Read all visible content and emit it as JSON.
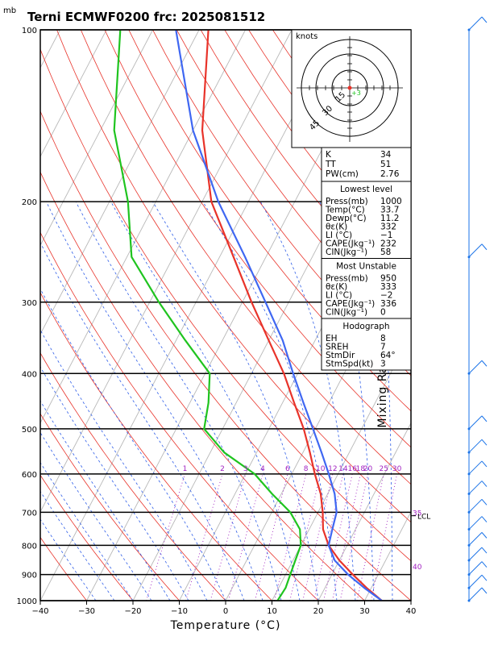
{
  "chart_data": {
    "type": "skew-t",
    "title": "Terni ECMWF0200  frc: 2025081512",
    "pressure_unit_label": "mb",
    "xlabel": "Temperature (°C)",
    "ylabel_right": "Mixing Ratio (g/kg)",
    "xlim": [
      -40,
      40
    ],
    "ylim_mb": [
      1000,
      100
    ],
    "x_ticks": [
      "−40",
      "−30",
      "−20",
      "−10",
      "0",
      "10",
      "20",
      "30",
      "40"
    ],
    "pressure_levels": [
      {
        "p": 100,
        "label": "100"
      },
      {
        "p": 200,
        "label": "200"
      },
      {
        "p": 300,
        "label": "300"
      },
      {
        "p": 400,
        "label": "400"
      },
      {
        "p": 500,
        "label": "500"
      },
      {
        "p": 600,
        "label": "600"
      },
      {
        "p": 700,
        "label": "700"
      },
      {
        "p": 800,
        "label": "800"
      },
      {
        "p": 900,
        "label": "900"
      },
      {
        "p": 1000,
        "label": "1000"
      }
    ],
    "mixing_ratio_labels": [
      "1",
      "2",
      "3",
      "4",
      "6",
      "8",
      "10",
      "12",
      "14",
      "16",
      "18",
      "20",
      "25",
      "30"
    ],
    "isotherm_labels": [
      "35",
      "40"
    ],
    "lcl_label": "LCL",
    "series": [
      {
        "role": "temperature",
        "color": "#e8332a",
        "points": [
          [
            1000,
            33.7
          ],
          [
            950,
            29
          ],
          [
            900,
            24.5
          ],
          [
            850,
            20
          ],
          [
            800,
            16
          ],
          [
            750,
            13
          ],
          [
            700,
            11
          ],
          [
            650,
            8.5
          ],
          [
            600,
            5
          ],
          [
            550,
            1.5
          ],
          [
            500,
            -2.5
          ],
          [
            450,
            -7.5
          ],
          [
            400,
            -13
          ],
          [
            350,
            -20
          ],
          [
            300,
            -28
          ],
          [
            250,
            -37
          ],
          [
            200,
            -48
          ],
          [
            150,
            -58
          ],
          [
            100,
            -68
          ]
        ]
      },
      {
        "role": "dewpoint",
        "color": "#1fc41f",
        "points": [
          [
            1000,
            11.2
          ],
          [
            950,
            11.5
          ],
          [
            900,
            11
          ],
          [
            850,
            10.5
          ],
          [
            800,
            10
          ],
          [
            750,
            8
          ],
          [
            700,
            4
          ],
          [
            650,
            -2
          ],
          [
            600,
            -8
          ],
          [
            550,
            -17
          ],
          [
            500,
            -24
          ],
          [
            450,
            -26
          ],
          [
            400,
            -29
          ],
          [
            350,
            -38
          ],
          [
            300,
            -48
          ],
          [
            250,
            -59
          ],
          [
            200,
            -66
          ],
          [
            150,
            -77
          ],
          [
            100,
            -87
          ]
        ]
      },
      {
        "role": "parcel",
        "color": "#3f67f2",
        "points": [
          [
            1000,
            33.7
          ],
          [
            950,
            28.5
          ],
          [
            900,
            23.5
          ],
          [
            850,
            19
          ],
          [
            800,
            16
          ],
          [
            750,
            15
          ],
          [
            700,
            14
          ],
          [
            650,
            11.5
          ],
          [
            600,
            8
          ],
          [
            550,
            4
          ],
          [
            500,
            -0.5
          ],
          [
            450,
            -5.5
          ],
          [
            400,
            -11
          ],
          [
            350,
            -17
          ],
          [
            300,
            -25
          ],
          [
            250,
            -34.5
          ],
          [
            200,
            -46.5
          ],
          [
            150,
            -60
          ],
          [
            100,
            -75
          ]
        ]
      }
    ],
    "wind_barbs": [
      {
        "p": 100,
        "label": "100"
      },
      {
        "p": 250,
        "label": "250"
      },
      {
        "p": 400,
        "label": "400"
      },
      {
        "p": 500,
        "label": "500"
      },
      {
        "p": 550,
        "label": "550"
      },
      {
        "p": 600,
        "label": "600"
      },
      {
        "p": 650,
        "label": "650"
      },
      {
        "p": 700,
        "label": "700"
      },
      {
        "p": 750,
        "label": "750"
      },
      {
        "p": 800,
        "label": "800"
      },
      {
        "p": 850,
        "label": "850"
      },
      {
        "p": 900,
        "label": "900"
      },
      {
        "p": 950,
        "label": "950"
      },
      {
        "p": 1000,
        "label": "1000"
      }
    ]
  },
  "hodograph": {
    "units_label": "knots",
    "ring_labels": [
      "15",
      "30",
      "45"
    ],
    "storm_marker_label": "+3"
  },
  "indices": {
    "top": [
      {
        "k": "K",
        "v": "34"
      },
      {
        "k": "TT",
        "v": "51"
      },
      {
        "k": "PW(cm)",
        "v": "2.76"
      }
    ],
    "lowest_level": {
      "header": "Lowest level",
      "rows": [
        {
          "k": "Press(mb)",
          "v": "1000"
        },
        {
          "k": "Temp(°C)",
          "v": "33.7"
        },
        {
          "k": "Dewp(°C)",
          "v": "11.2"
        },
        {
          "k": "θε(K)",
          "v": "332"
        },
        {
          "k": "LI (°C)",
          "v": "−1"
        },
        {
          "k": "CAPE(Jkg⁻¹)",
          "v": "232"
        },
        {
          "k": "CIN(Jkg⁻¹)",
          "v": "58"
        }
      ]
    },
    "most_unstable": {
      "header": "Most Unstable",
      "rows": [
        {
          "k": "Press(mb)",
          "v": "950"
        },
        {
          "k": "θε(K)",
          "v": "333"
        },
        {
          "k": "LI (°C)",
          "v": "−2"
        },
        {
          "k": "CAPE(Jkg⁻¹)",
          "v": "336"
        },
        {
          "k": "CIN(Jkg⁻¹)",
          "v": "0"
        }
      ]
    },
    "hodograph_params": {
      "header": "Hodograph",
      "rows": [
        {
          "k": "EH",
          "v": "8"
        },
        {
          "k": "SREH",
          "v": "7"
        },
        {
          "k": "StmDir",
          "v": "64°"
        },
        {
          "k": "StmSpd(kt)",
          "v": "3"
        }
      ]
    }
  }
}
